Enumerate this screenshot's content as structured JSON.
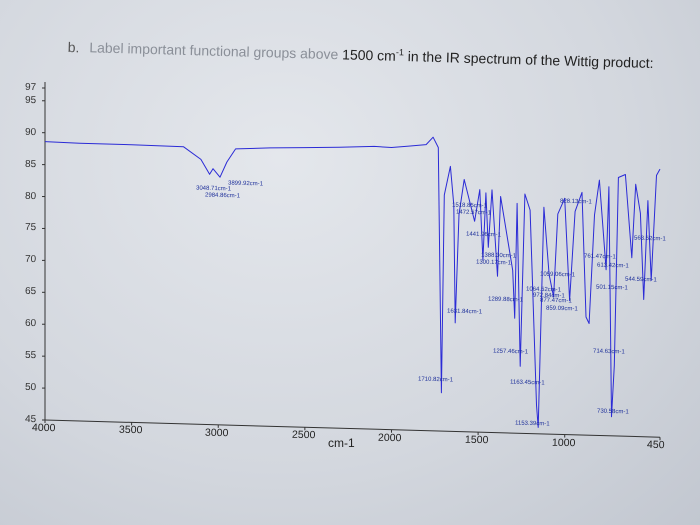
{
  "question": {
    "label": "b.",
    "text_faded": "Label important functional groups above",
    "text_main": " 1500 cm",
    "superscript": "-1",
    "text_rest": " in the IR spectrum of the Wittig product:"
  },
  "chart_data": {
    "type": "line",
    "title": "",
    "xlabel": "cm-1",
    "ylabel": "",
    "x_ticks": [
      "4000",
      "3500",
      "3000",
      "2500",
      "2000",
      "1500",
      "1000",
      "450"
    ],
    "y_ticks": [
      "97",
      "95",
      "90",
      "85",
      "80",
      "75",
      "70",
      "65",
      "60",
      "55",
      "50",
      "45"
    ],
    "xlim": [
      4000,
      450
    ],
    "ylim": [
      45,
      97
    ],
    "color": "#2b2bd6",
    "peak_labels": [
      "3899.92cm-1",
      "3048.71cm-1",
      "2984.86cm-1",
      "1710.82cm-1",
      "1631.84cm-1",
      "1518.85cm-1",
      "1472.57cm-1",
      "1441.96cm-1",
      "1388.30cm-1",
      "1300.17cm-1",
      "1289.88cm-1",
      "1257.46cm-1",
      "1163.45cm-1",
      "1153.39cm-1",
      "1059.06cm-1",
      "1064.52cm-1",
      "972.84cm-1",
      "877.47cm-1",
      "859.09cm-1",
      "828.13cm-1",
      "761.47cm-1",
      "714.63cm-1",
      "730.58cm-1",
      "613.42cm-1",
      "563.52cm-1",
      "544.59cm-1",
      "501.15cm-1"
    ],
    "series": [
      {
        "x": [
          4000,
          3800,
          3500,
          3200,
          3100,
          3050,
          3030,
          2990,
          2950,
          2900,
          2700,
          2500,
          2300,
          2100,
          2000,
          1900,
          1800,
          1760,
          1730,
          1712,
          1695,
          1660,
          1640,
          1632,
          1610,
          1580,
          1520,
          1490,
          1472,
          1455,
          1441,
          1420,
          1388,
          1370,
          1300,
          1289,
          1275,
          1257,
          1230,
          1200,
          1163,
          1153,
          1120,
          1090,
          1064,
          1040,
          1000,
          972,
          940,
          900,
          877,
          859,
          828,
          800,
          761,
          745,
          730,
          714,
          690,
          650,
          613,
          590,
          563,
          544,
          520,
          501,
          470,
          450
        ],
        "y": [
          88.6,
          88.5,
          88.5,
          88.4,
          86.5,
          84.2,
          85.1,
          83.8,
          86.2,
          88.3,
          88.6,
          88.8,
          89.0,
          89.3,
          89.2,
          89.5,
          89.8,
          91.0,
          89.4,
          51.0,
          82.0,
          86.5,
          80.5,
          62.0,
          79.0,
          84.5,
          78.0,
          83.0,
          72.0,
          82.5,
          74.0,
          83.0,
          69.5,
          82.0,
          70.5,
          63.0,
          81.0,
          55.5,
          82.5,
          80.0,
          49.5,
          46.0,
          80.5,
          70.0,
          66.5,
          79.5,
          82.0,
          66.0,
          80.0,
          83.0,
          63.5,
          62.5,
          79.5,
          85.0,
          71.0,
          84.0,
          48.0,
          56.0,
          85.5,
          86.0,
          73.0,
          84.5,
          80.0,
          66.5,
          82.0,
          69.5,
          86.0,
          87.0
        ]
      }
    ]
  }
}
